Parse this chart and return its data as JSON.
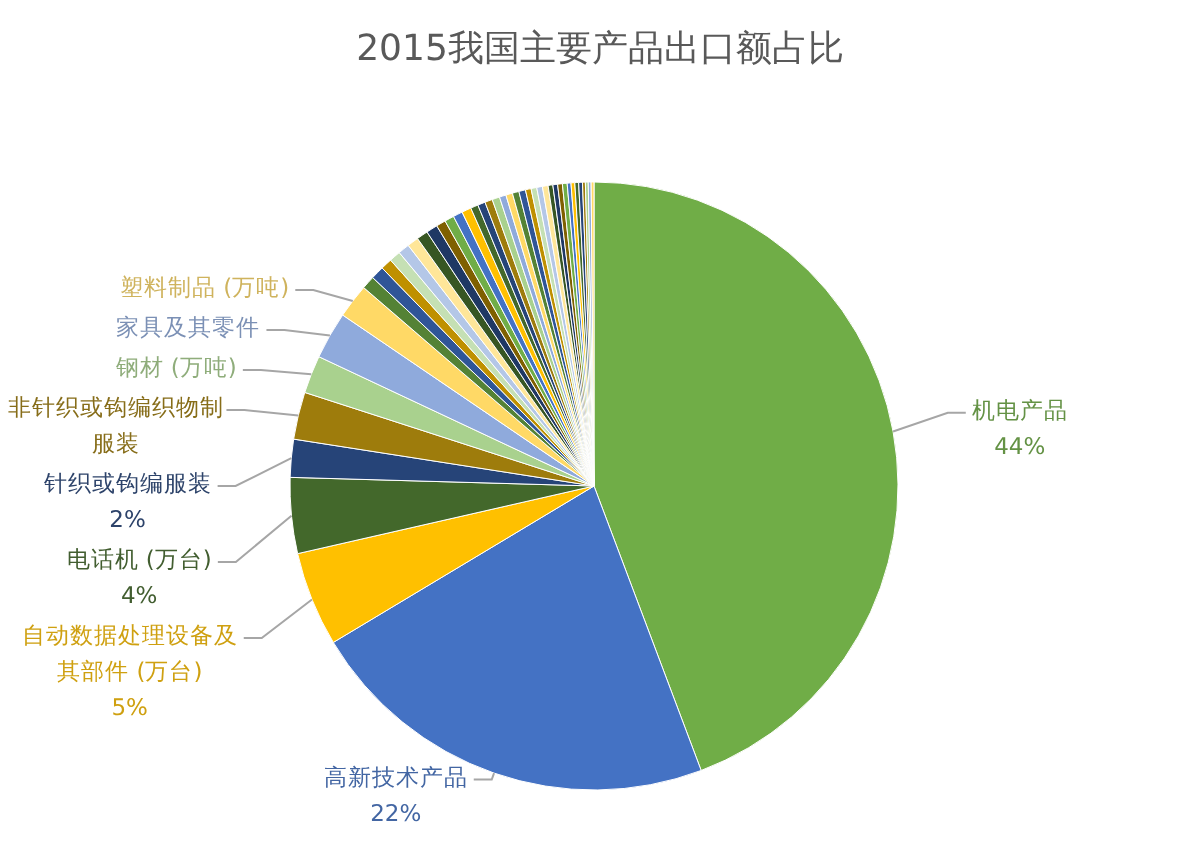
{
  "chart_data": {
    "type": "pie",
    "title": "2015我国主要产品出口额占比",
    "categories": [
      "机电产品",
      "高新技术产品",
      "自动数据处理设备及其部件 (万台)",
      "电话机 (万台)",
      "针织或钩编服装",
      "非针织或钩编织物制服装",
      "钢材 (万吨)",
      "家具及其零件",
      "塑料制品 (万吨)",
      null,
      null,
      null,
      null,
      null,
      null,
      null,
      null,
      null,
      null,
      null,
      null,
      null,
      null,
      null,
      null,
      null,
      null,
      null,
      null,
      null,
      null,
      null,
      null,
      null,
      null,
      null,
      null,
      null,
      null,
      null,
      null,
      null,
      null,
      null,
      null
    ],
    "values": [
      44,
      22,
      5,
      4,
      2,
      2.5,
      2,
      2.5,
      1.8,
      0.7,
      0.7,
      0.6,
      0.6,
      0.6,
      0.6,
      0.6,
      0.6,
      0.5,
      0.5,
      0.5,
      0.5,
      0.4,
      0.4,
      0.4,
      0.4,
      0.35,
      0.35,
      0.35,
      0.35,
      0.3,
      0.3,
      0.3,
      0.3,
      0.25,
      0.25,
      0.25,
      0.25,
      0.2,
      0.2,
      0.2,
      0.2,
      0.15,
      0.15,
      0.15,
      0.15
    ],
    "value_labels": [
      "44%",
      "22%",
      "5%",
      "4%",
      "2%",
      null,
      null,
      null,
      null,
      null,
      null,
      null,
      null,
      null,
      null,
      null,
      null,
      null,
      null,
      null,
      null,
      null,
      null,
      null,
      null,
      null,
      null,
      null,
      null,
      null,
      null,
      null,
      null,
      null,
      null,
      null,
      null,
      null,
      null,
      null,
      null,
      null,
      null,
      null,
      null
    ],
    "colors": [
      "#70ad47",
      "#4472c4",
      "#ffc000",
      "#43682b",
      "#264478",
      "#9e7c0c",
      "#a9d18e",
      "#8faadc",
      "#ffd966",
      "#548235",
      "#2f5597",
      "#bf9000",
      "#c5e0b4",
      "#b4c7e7",
      "#ffe699",
      "#375623",
      "#1f3864",
      "#7f6000",
      "#70ad47",
      "#4472c4",
      "#ffc000",
      "#43682b",
      "#264478",
      "#9e7c0c",
      "#a9d18e",
      "#8faadc",
      "#ffd966",
      "#548235",
      "#2f5597",
      "#bf9000",
      "#c5e0b4",
      "#b4c7e7",
      "#ffe699",
      "#375623",
      "#1f3864",
      "#7f6000",
      "#70ad47",
      "#4472c4",
      "#ffc000",
      "#43682b",
      "#264478",
      "#9e7c0c",
      "#a9d18e",
      "#8faadc",
      "#ffd966"
    ]
  }
}
